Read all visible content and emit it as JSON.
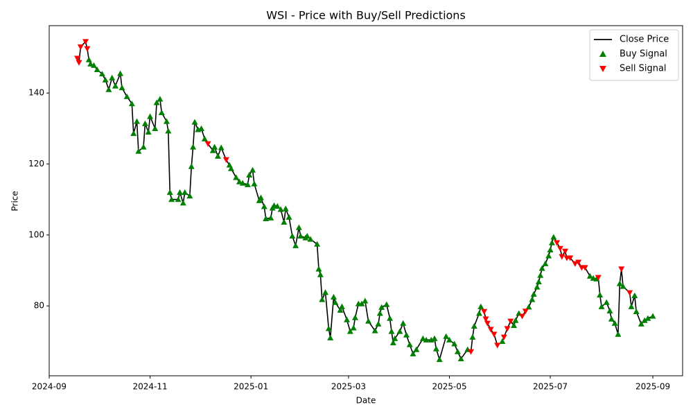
{
  "chart_data": {
    "type": "line",
    "title": "WSI - Price with Buy/Sell Predictions",
    "x_label": "Date",
    "y_label": "Price",
    "xlim": [
      "2024-09-01",
      "2025-09-19"
    ],
    "xticks": [
      {
        "value": "2024-09-01",
        "label": "2024-09"
      },
      {
        "value": "2024-11-01",
        "label": "2024-11"
      },
      {
        "value": "2025-01-01",
        "label": "2025-01"
      },
      {
        "value": "2025-03-01",
        "label": "2025-03"
      },
      {
        "value": "2025-05-01",
        "label": "2025-05"
      },
      {
        "value": "2025-07-01",
        "label": "2025-07"
      },
      {
        "value": "2025-09-01",
        "label": "2025-09"
      }
    ],
    "ylim": [
      60.3,
      159
    ],
    "yticks": [
      80,
      100,
      120,
      140
    ],
    "grid": false,
    "legend": "upper right",
    "series": [
      {
        "name": "Close Price",
        "type": "line",
        "color": "#000000",
        "x": [
          "2024-09-18",
          "2024-09-19",
          "2024-09-20",
          "2024-09-23",
          "2024-09-24",
          "2024-09-25",
          "2024-09-26",
          "2024-09-28",
          "2024-09-30",
          "2024-10-03",
          "2024-10-05",
          "2024-10-07",
          "2024-10-09",
          "2024-10-11",
          "2024-10-14",
          "2024-10-15",
          "2024-10-18",
          "2024-10-21",
          "2024-10-22",
          "2024-10-24",
          "2024-10-25",
          "2024-10-28",
          "2024-10-29",
          "2024-10-31",
          "2024-11-01",
          "2024-11-04",
          "2024-11-05",
          "2024-11-07",
          "2024-11-08",
          "2024-11-11",
          "2024-11-12",
          "2024-11-13",
          "2024-11-14",
          "2024-11-18",
          "2024-11-19",
          "2024-11-21",
          "2024-11-22",
          "2024-11-25",
          "2024-11-26",
          "2024-11-27",
          "2024-11-28",
          "2024-11-30",
          "2024-12-02",
          "2024-12-04",
          "2024-12-06",
          "2024-12-09",
          "2024-12-10",
          "2024-12-12",
          "2024-12-14",
          "2024-12-17",
          "2024-12-19",
          "2024-12-20",
          "2024-12-23",
          "2024-12-25",
          "2024-12-27",
          "2024-12-30",
          "2024-12-31",
          "2025-01-02",
          "2025-01-03",
          "2025-01-06",
          "2025-01-07",
          "2025-01-09",
          "2025-01-10",
          "2025-01-13",
          "2025-01-14",
          "2025-01-15",
          "2025-01-17",
          "2025-01-19",
          "2025-01-21",
          "2025-01-22",
          "2025-01-24",
          "2025-01-26",
          "2025-01-28",
          "2025-01-30",
          "2025-01-31",
          "2025-02-03",
          "2025-02-04",
          "2025-02-06",
          "2025-02-10",
          "2025-02-11",
          "2025-02-12",
          "2025-02-13",
          "2025-02-15",
          "2025-02-17",
          "2025-02-18",
          "2025-02-20",
          "2025-02-21",
          "2025-02-24",
          "2025-02-25",
          "2025-02-28",
          "2025-03-02",
          "2025-03-04",
          "2025-03-05",
          "2025-03-07",
          "2025-03-09",
          "2025-03-11",
          "2025-03-13",
          "2025-03-17",
          "2025-03-19",
          "2025-03-20",
          "2025-03-21",
          "2025-03-24",
          "2025-03-26",
          "2025-03-27",
          "2025-03-28",
          "2025-03-29",
          "2025-04-01",
          "2025-04-03",
          "2025-04-05",
          "2025-04-07",
          "2025-04-09",
          "2025-04-11",
          "2025-04-15",
          "2025-04-17",
          "2025-04-20",
          "2025-04-22",
          "2025-04-23",
          "2025-04-25",
          "2025-04-29",
          "2025-05-01",
          "2025-05-04",
          "2025-05-06",
          "2025-05-08",
          "2025-05-12",
          "2025-05-14",
          "2025-05-15",
          "2025-05-16",
          "2025-05-19",
          "2025-05-20",
          "2025-05-22",
          "2025-05-23",
          "2025-05-24",
          "2025-05-26",
          "2025-05-28",
          "2025-05-30",
          "2025-06-02",
          "2025-06-03",
          "2025-06-05",
          "2025-06-07",
          "2025-06-09",
          "2025-06-10",
          "2025-06-12",
          "2025-06-14",
          "2025-06-16",
          "2025-06-18",
          "2025-06-20",
          "2025-06-21",
          "2025-06-23",
          "2025-06-24",
          "2025-06-25",
          "2025-06-26",
          "2025-06-28",
          "2025-06-30",
          "2025-07-01",
          "2025-07-02",
          "2025-07-03",
          "2025-07-05",
          "2025-07-07",
          "2025-07-08",
          "2025-07-10",
          "2025-07-11",
          "2025-07-13",
          "2025-07-16",
          "2025-07-18",
          "2025-07-20",
          "2025-07-22",
          "2025-07-25",
          "2025-07-27",
          "2025-07-29",
          "2025-07-30",
          "2025-07-31",
          "2025-08-01",
          "2025-08-04",
          "2025-08-06",
          "2025-08-07",
          "2025-08-09",
          "2025-08-11",
          "2025-08-12",
          "2025-08-13",
          "2025-08-14",
          "2025-08-18",
          "2025-08-19",
          "2025-08-21",
          "2025-08-22",
          "2025-08-25",
          "2025-08-27",
          "2025-08-29",
          "2025-09-01"
        ],
        "values": [
          149.8,
          148.6,
          153,
          154.5,
          152.5,
          149.4,
          148.2,
          147.8,
          146.6,
          145.4,
          143.7,
          141,
          144.3,
          142,
          145.5,
          141.5,
          139,
          137,
          128.6,
          132,
          123.6,
          124.8,
          131.4,
          129,
          133.4,
          130,
          137.3,
          138.3,
          134.5,
          132,
          129.3,
          112,
          110,
          110,
          112,
          109,
          112,
          111,
          119.3,
          124.8,
          131.8,
          129.7,
          130,
          127.1,
          125.7,
          123.8,
          124.8,
          122.2,
          124.6,
          121.2,
          119.7,
          118.7,
          116.2,
          115,
          114.6,
          114.2,
          116.9,
          118.3,
          114.4,
          109.7,
          110.5,
          108,
          104.6,
          104.8,
          107.6,
          108.3,
          108.1,
          107.2,
          103.6,
          107.4,
          105,
          99.7,
          97,
          102.1,
          99.7,
          99.2,
          99.7,
          98.8,
          97.4,
          90.4,
          88.8,
          81.8,
          83.8,
          73.6,
          71,
          82.5,
          81,
          78.8,
          79.8,
          76.1,
          72.8,
          73.8,
          76.7,
          80.6,
          80.6,
          81.4,
          75.7,
          73,
          74.9,
          77.9,
          79.6,
          80.4,
          76.5,
          72.8,
          69.6,
          70.8,
          72.8,
          75.1,
          71.8,
          69.1,
          66.5,
          67.7,
          70.8,
          70.4,
          70.4,
          70.8,
          67.9,
          64.9,
          71.4,
          70.4,
          69.3,
          67.1,
          65.1,
          67.7,
          67.1,
          71.2,
          74.3,
          77.9,
          79.8,
          78.4,
          76.3,
          75.1,
          73.4,
          72,
          68.9,
          70,
          71.2,
          73.6,
          75.7,
          74.5,
          75.9,
          77.9,
          77.1,
          78.5,
          79.7,
          81.8,
          83.3,
          85.3,
          86.8,
          88.6,
          90.6,
          91.9,
          94.1,
          95.8,
          97.8,
          99.4,
          97.8,
          96.2,
          93.9,
          95.4,
          93.5,
          93.5,
          91.9,
          92.3,
          90.8,
          90.8,
          88.4,
          87.8,
          87.6,
          88,
          83.1,
          79.8,
          81,
          78.6,
          76.3,
          75.1,
          72,
          86.3,
          90.4,
          85.5,
          83.7,
          79.8,
          82.9,
          78.4,
          74.9,
          75.9,
          76.5,
          77.1
        ]
      },
      {
        "name": "Buy Signal",
        "type": "scatter",
        "marker": "up",
        "color": "#008000",
        "x": [
          "2024-09-25",
          "2024-09-26",
          "2024-09-28",
          "2024-09-30",
          "2024-10-03",
          "2024-10-05",
          "2024-10-07",
          "2024-10-09",
          "2024-10-11",
          "2024-10-14",
          "2024-10-15",
          "2024-10-18",
          "2024-10-21",
          "2024-10-22",
          "2024-10-24",
          "2024-10-25",
          "2024-10-28",
          "2024-10-29",
          "2024-10-31",
          "2024-11-01",
          "2024-11-04",
          "2024-11-05",
          "2024-11-07",
          "2024-11-08",
          "2024-11-11",
          "2024-11-12",
          "2024-11-13",
          "2024-11-14",
          "2024-11-18",
          "2024-11-19",
          "2024-11-21",
          "2024-11-22",
          "2024-11-25",
          "2024-11-26",
          "2024-11-27",
          "2024-11-28",
          "2024-11-30",
          "2024-12-02",
          "2024-12-04",
          "2024-12-09",
          "2024-12-10",
          "2024-12-12",
          "2024-12-14",
          "2024-12-19",
          "2024-12-20",
          "2024-12-23",
          "2024-12-25",
          "2024-12-27",
          "2024-12-30",
          "2024-12-31",
          "2025-01-02",
          "2025-01-03",
          "2025-01-06",
          "2025-01-07",
          "2025-01-09",
          "2025-01-10",
          "2025-01-13",
          "2025-01-14",
          "2025-01-15",
          "2025-01-17",
          "2025-01-19",
          "2025-01-21",
          "2025-01-22",
          "2025-01-24",
          "2025-01-26",
          "2025-01-28",
          "2025-01-30",
          "2025-01-31",
          "2025-02-03",
          "2025-02-04",
          "2025-02-06",
          "2025-02-10",
          "2025-02-11",
          "2025-02-12",
          "2025-02-13",
          "2025-02-15",
          "2025-02-17",
          "2025-02-18",
          "2025-02-20",
          "2025-02-21",
          "2025-02-24",
          "2025-02-25",
          "2025-02-28",
          "2025-03-02",
          "2025-03-04",
          "2025-03-05",
          "2025-03-07",
          "2025-03-09",
          "2025-03-11",
          "2025-03-13",
          "2025-03-17",
          "2025-03-19",
          "2025-03-20",
          "2025-03-21",
          "2025-03-24",
          "2025-03-26",
          "2025-03-27",
          "2025-03-28",
          "2025-03-29",
          "2025-04-01",
          "2025-04-03",
          "2025-04-05",
          "2025-04-07",
          "2025-04-09",
          "2025-04-11",
          "2025-04-15",
          "2025-04-17",
          "2025-04-20",
          "2025-04-22",
          "2025-04-23",
          "2025-04-25",
          "2025-04-29",
          "2025-05-01",
          "2025-05-04",
          "2025-05-06",
          "2025-05-08",
          "2025-05-12",
          "2025-05-15",
          "2025-05-16",
          "2025-05-19",
          "2025-05-20",
          "2025-06-02",
          "2025-06-09",
          "2025-06-10",
          "2025-06-12",
          "2025-06-18",
          "2025-06-20",
          "2025-06-21",
          "2025-06-23",
          "2025-06-24",
          "2025-06-25",
          "2025-06-26",
          "2025-06-28",
          "2025-06-30",
          "2025-07-01",
          "2025-07-02",
          "2025-07-03",
          "2025-07-25",
          "2025-07-27",
          "2025-07-29",
          "2025-07-31",
          "2025-08-01",
          "2025-08-04",
          "2025-08-06",
          "2025-08-07",
          "2025-08-09",
          "2025-08-11",
          "2025-08-12",
          "2025-08-14",
          "2025-08-19",
          "2025-08-21",
          "2025-08-22",
          "2025-08-25",
          "2025-08-27",
          "2025-08-29",
          "2025-09-01"
        ],
        "values": [
          149.4,
          148.2,
          147.8,
          146.6,
          145.4,
          143.7,
          141,
          144.3,
          142,
          145.5,
          141.5,
          139,
          137,
          128.6,
          132,
          123.6,
          124.8,
          131.4,
          129,
          133.4,
          130,
          137.3,
          138.3,
          134.5,
          132,
          129.3,
          112,
          110,
          110,
          112,
          109,
          112,
          111,
          119.3,
          124.8,
          131.8,
          129.7,
          130,
          127.1,
          123.8,
          124.8,
          122.2,
          124.6,
          119.7,
          118.7,
          116.2,
          115,
          114.6,
          114.2,
          116.9,
          118.3,
          114.4,
          109.7,
          110.5,
          108,
          104.6,
          104.8,
          107.6,
          108.3,
          108.1,
          107.2,
          103.6,
          107.4,
          105,
          99.7,
          97,
          102.1,
          99.7,
          99.2,
          99.7,
          98.8,
          97.4,
          90.4,
          88.8,
          81.8,
          83.8,
          73.6,
          71,
          82.5,
          81,
          78.8,
          79.8,
          76.1,
          72.8,
          73.8,
          76.7,
          80.6,
          80.6,
          81.4,
          75.7,
          73,
          74.9,
          77.9,
          79.6,
          80.4,
          76.5,
          72.8,
          69.6,
          70.8,
          72.8,
          75.1,
          71.8,
          69.1,
          66.5,
          67.7,
          70.8,
          70.4,
          70.4,
          70.8,
          67.9,
          64.9,
          71.4,
          70.4,
          69.3,
          67.1,
          65.1,
          67.7,
          71.2,
          74.3,
          77.9,
          79.8,
          70,
          74.5,
          75.9,
          77.9,
          79.7,
          81.8,
          83.3,
          85.3,
          86.8,
          88.6,
          90.6,
          91.9,
          94.1,
          95.8,
          97.8,
          99.4,
          88.4,
          87.8,
          87.6,
          83.1,
          79.8,
          81,
          78.6,
          76.3,
          75.1,
          72,
          86.3,
          85.5,
          79.8,
          82.9,
          78.4,
          74.9,
          75.9,
          76.5,
          77.1
        ]
      },
      {
        "name": "Sell Signal",
        "type": "scatter",
        "marker": "down",
        "color": "#ff0000",
        "x": [
          "2024-09-18",
          "2024-09-19",
          "2024-09-20",
          "2024-09-23",
          "2024-09-24",
          "2024-12-06",
          "2024-12-17",
          "2025-05-14",
          "2025-05-22",
          "2025-05-23",
          "2025-05-24",
          "2025-05-26",
          "2025-05-28",
          "2025-05-30",
          "2025-06-03",
          "2025-06-05",
          "2025-06-07",
          "2025-06-14",
          "2025-06-16",
          "2025-07-05",
          "2025-07-07",
          "2025-07-08",
          "2025-07-10",
          "2025-07-11",
          "2025-07-13",
          "2025-07-16",
          "2025-07-18",
          "2025-07-20",
          "2025-07-22",
          "2025-07-30",
          "2025-08-13",
          "2025-08-18"
        ],
        "values": [
          149.8,
          148.6,
          153,
          154.5,
          152.5,
          125.7,
          121.2,
          67.1,
          78.4,
          76.3,
          75.1,
          73.4,
          72,
          68.9,
          71.2,
          73.6,
          75.7,
          77.1,
          78.5,
          97.8,
          96.2,
          93.9,
          95.4,
          93.5,
          93.5,
          91.9,
          92.3,
          90.8,
          90.8,
          88,
          90.4,
          83.7
        ]
      }
    ]
  }
}
